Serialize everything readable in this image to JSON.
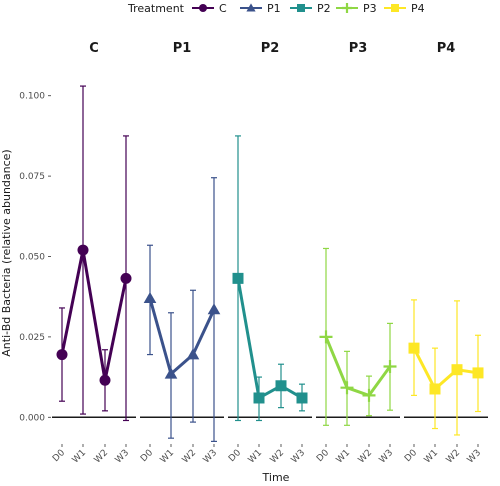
{
  "chart_data": {
    "type": "line",
    "legend": {
      "title": "Treatment",
      "position": "top",
      "entries": [
        {
          "name": "C",
          "color": "#440154",
          "shape": "circle"
        },
        {
          "name": "P1",
          "color": "#3b528b",
          "shape": "triangle"
        },
        {
          "name": "P2",
          "color": "#21908d",
          "shape": "square"
        },
        {
          "name": "P3",
          "color": "#8fd744",
          "shape": "plus"
        },
        {
          "name": "P4",
          "color": "#fde725",
          "shape": "square"
        }
      ]
    },
    "xlabel": "Time",
    "ylabel": "Anti-Bd Bacteria (relative abundance)",
    "categories": [
      "D0",
      "W1",
      "W2",
      "W3"
    ],
    "ylim": [
      -0.008,
      0.108
    ],
    "yticks": [
      0.0,
      0.025,
      0.05,
      0.075,
      0.1
    ],
    "ytick_labels": [
      "0.000",
      "0.025",
      "0.050",
      "0.075",
      "0.100"
    ],
    "hline": 0,
    "grid": false,
    "facets": [
      {
        "label": "C",
        "color": "#440154",
        "shape": "circle",
        "values": [
          0.0195,
          0.052,
          0.0115,
          0.0432
        ],
        "lower": [
          0.005,
          0.001,
          0.002,
          -0.001
        ],
        "upper": [
          0.034,
          0.103,
          0.021,
          0.0875
        ]
      },
      {
        "label": "P1",
        "color": "#3b528b",
        "shape": "triangle",
        "values": [
          0.037,
          0.0135,
          0.0195,
          0.0335
        ],
        "lower": [
          0.0195,
          -0.0065,
          -0.0015,
          -0.0075
        ],
        "upper": [
          0.0535,
          0.0325,
          0.0395,
          0.0745
        ]
      },
      {
        "label": "P2",
        "color": "#21908d",
        "shape": "square",
        "values": [
          0.0432,
          0.006,
          0.0098,
          0.006
        ],
        "lower": [
          -0.001,
          -0.001,
          0.003,
          0.002
        ],
        "upper": [
          0.0875,
          0.0125,
          0.0165,
          0.0103
        ]
      },
      {
        "label": "P3",
        "color": "#8fd744",
        "shape": "plus",
        "values": [
          0.025,
          0.0092,
          0.0068,
          0.0158
        ],
        "lower": [
          -0.0025,
          -0.0025,
          0.0005,
          0.0022
        ],
        "upper": [
          0.0525,
          0.0205,
          0.0128,
          0.0292
        ]
      },
      {
        "label": "P4",
        "color": "#fde725",
        "shape": "square",
        "values": [
          0.0215,
          0.0088,
          0.0148,
          0.0138
        ],
        "lower": [
          0.0068,
          -0.0035,
          -0.0055,
          0.0018
        ],
        "upper": [
          0.0365,
          0.0215,
          0.0362,
          0.0255
        ]
      }
    ]
  }
}
